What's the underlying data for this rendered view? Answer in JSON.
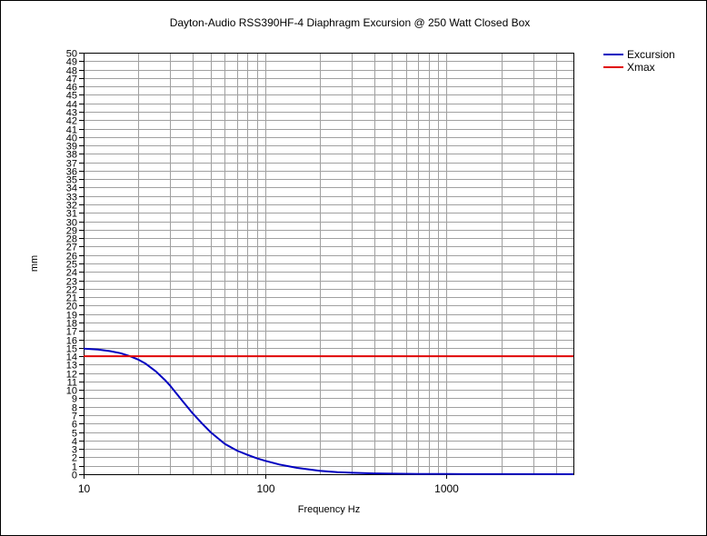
{
  "chart_data": {
    "type": "line",
    "title": "Dayton-Audio RSS390HF-4 Diaphragm Excursion @ 250 Watt Closed Box",
    "xlabel": "Frequency Hz",
    "ylabel": "mm",
    "xscale": "log",
    "xlim": [
      10,
      5000
    ],
    "ylim": [
      0,
      50
    ],
    "grid": true,
    "legend_position": "top-right",
    "x_tick_labels": [
      "10",
      "100",
      "1000"
    ],
    "y_tick_labels": [
      "0",
      "1",
      "2",
      "3",
      "4",
      "5",
      "6",
      "7",
      "8",
      "9",
      "10",
      "11",
      "12",
      "13",
      "14",
      "15",
      "16",
      "17",
      "18",
      "19",
      "20",
      "21",
      "22",
      "23",
      "24",
      "25",
      "26",
      "27",
      "28",
      "29",
      "30",
      "31",
      "32",
      "33",
      "34",
      "35",
      "36",
      "37",
      "38",
      "39",
      "40",
      "41",
      "42",
      "43",
      "44",
      "45",
      "46",
      "47",
      "48",
      "49",
      "50"
    ],
    "series": [
      {
        "name": "Excursion",
        "color": "#0000c0",
        "x": [
          10,
          12,
          14,
          16,
          18,
          20,
          22,
          25,
          28,
          30,
          35,
          40,
          45,
          50,
          60,
          70,
          80,
          90,
          100,
          120,
          150,
          200,
          250,
          300,
          400,
          500,
          700,
          1000,
          2000,
          5000
        ],
        "y": [
          14.9,
          14.8,
          14.6,
          14.35,
          14.0,
          13.6,
          13.1,
          12.2,
          11.2,
          10.5,
          8.7,
          7.2,
          6.0,
          5.0,
          3.6,
          2.8,
          2.3,
          1.9,
          1.6,
          1.15,
          0.75,
          0.4,
          0.25,
          0.17,
          0.1,
          0.06,
          0.03,
          0.02,
          0.01,
          0.0
        ]
      },
      {
        "name": "Xmax",
        "color": "#e00000",
        "x": [
          10,
          5000
        ],
        "y": [
          14,
          14
        ]
      }
    ]
  }
}
